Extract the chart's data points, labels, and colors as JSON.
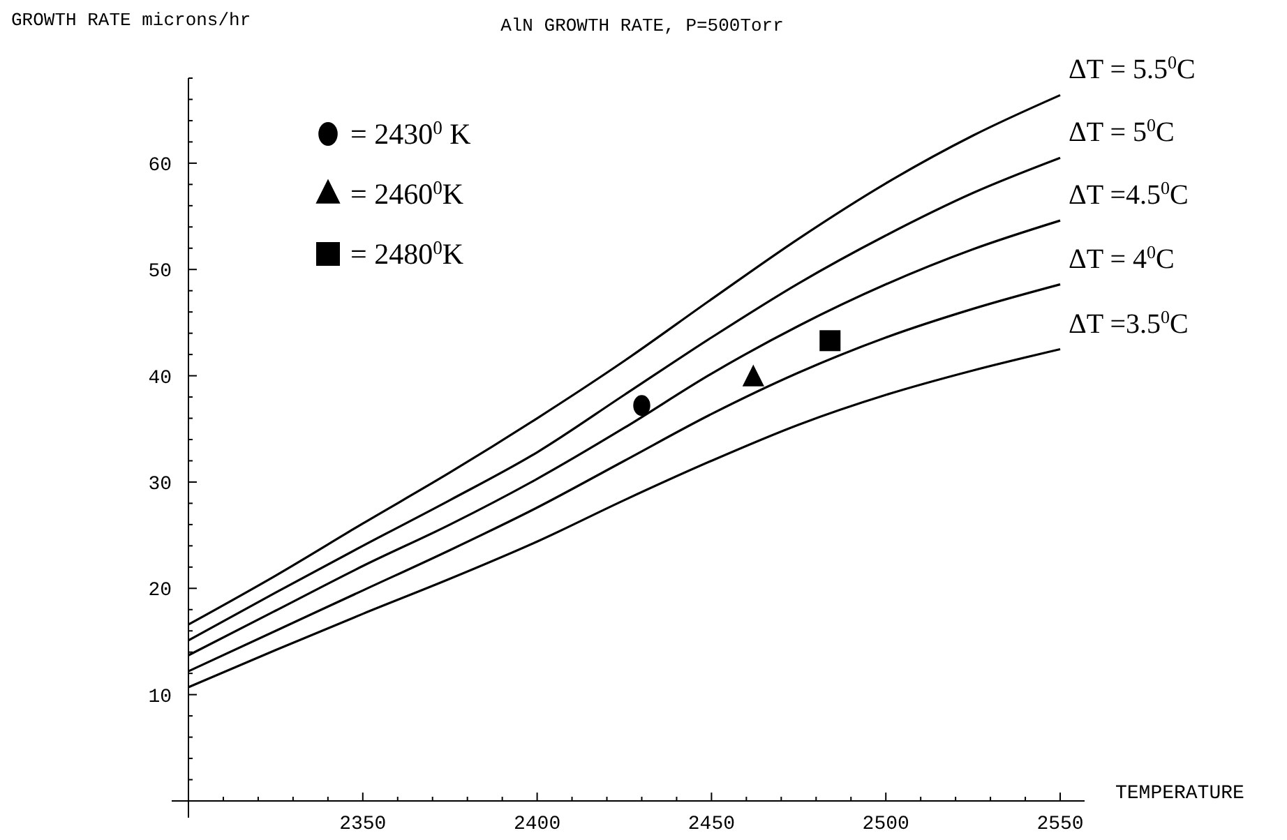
{
  "chart_data": {
    "type": "line",
    "title": "AlN GROWTH RATE, P=500Torr",
    "xlabel": "TEMPERATURE",
    "ylabel": "GROWTH RATE microns/hr",
    "xlim": [
      2300,
      2557
    ],
    "ylim": [
      0,
      68
    ],
    "xticks": [
      {
        "value": 2310,
        "label": null
      },
      {
        "value": 2320,
        "label": null
      },
      {
        "value": 2330,
        "label": null
      },
      {
        "value": 2340,
        "label": null
      },
      2350,
      {
        "value": 2360,
        "label": null
      },
      {
        "value": 2370,
        "label": null
      },
      {
        "value": 2380,
        "label": null
      },
      {
        "value": 2390,
        "label": null
      },
      2400,
      {
        "value": 2410,
        "label": null
      },
      {
        "value": 2420,
        "label": null
      },
      {
        "value": 2430,
        "label": null
      },
      {
        "value": 2440,
        "label": null
      },
      2450,
      {
        "value": 2460,
        "label": null
      },
      {
        "value": 2470,
        "label": null
      },
      {
        "value": 2480,
        "label": null
      },
      {
        "value": 2490,
        "label": null
      },
      2500,
      {
        "value": 2510,
        "label": null
      },
      {
        "value": 2520,
        "label": null
      },
      {
        "value": 2530,
        "label": null
      },
      {
        "value": 2540,
        "label": null
      },
      2550
    ],
    "yticks": [
      {
        "value": 2,
        "label": null
      },
      {
        "value": 4,
        "label": null
      },
      {
        "value": 6,
        "label": null
      },
      {
        "value": 8,
        "label": null
      },
      10,
      {
        "value": 12,
        "label": null
      },
      {
        "value": 14,
        "label": null
      },
      {
        "value": 16,
        "label": null
      },
      {
        "value": 18,
        "label": null
      },
      20,
      {
        "value": 22,
        "label": null
      },
      {
        "value": 24,
        "label": null
      },
      {
        "value": 26,
        "label": null
      },
      {
        "value": 28,
        "label": null
      },
      30,
      {
        "value": 32,
        "label": null
      },
      {
        "value": 34,
        "label": null
      },
      {
        "value": 36,
        "label": null
      },
      {
        "value": 38,
        "label": null
      },
      40,
      {
        "value": 42,
        "label": null
      },
      {
        "value": 44,
        "label": null
      },
      {
        "value": 46,
        "label": null
      },
      {
        "value": 48,
        "label": null
      },
      50,
      {
        "value": 52,
        "label": null
      },
      {
        "value": 54,
        "label": null
      },
      {
        "value": 56,
        "label": null
      },
      {
        "value": 58,
        "label": null
      },
      60,
      {
        "value": 62,
        "label": null
      },
      {
        "value": 64,
        "label": null
      },
      {
        "value": 66,
        "label": null
      },
      {
        "value": 68,
        "label": null
      }
    ],
    "x": [
      2300,
      2325,
      2350,
      2375,
      2400,
      2425,
      2450,
      2475,
      2500,
      2525,
      2550
    ],
    "legend": "top left",
    "grid": false,
    "series": [
      {
        "name": "ΔT = 5.5$^{0}$C",
        "color": "#000000",
        "marker": "none",
        "values": [
          16.6,
          21.2,
          26.1,
          30.9,
          36.0,
          41.4,
          47.2,
          52.9,
          58.1,
          62.6,
          66.4
        ]
      },
      {
        "name": "ΔT = 5$^{0}$C",
        "color": "#000000",
        "marker": "none",
        "values": [
          15.1,
          19.6,
          24.0,
          28.3,
          32.8,
          38.2,
          43.6,
          48.7,
          53.2,
          57.2,
          60.5
        ]
      },
      {
        "name": "ΔT =4.5$^{0}$C",
        "color": "#000000",
        "marker": "none",
        "values": [
          13.7,
          17.9,
          22.1,
          26.0,
          30.3,
          35.1,
          40.2,
          44.7,
          48.6,
          51.9,
          54.6
        ]
      },
      {
        "name": "ΔT = 4$^{0}$C",
        "color": "#000000",
        "marker": "none",
        "values": [
          12.2,
          16.0,
          19.8,
          23.6,
          27.6,
          32.0,
          36.4,
          40.3,
          43.6,
          46.3,
          48.6
        ]
      },
      {
        "name": "ΔT =3.5$^{0}$C",
        "color": "#000000",
        "marker": "none",
        "values": [
          10.7,
          14.2,
          17.6,
          20.9,
          24.4,
          28.3,
          32.0,
          35.4,
          38.2,
          40.5,
          42.5
        ]
      },
      {
        "name": "= 2430$^{0}$ K",
        "type": "scatter",
        "color": "#000000",
        "marker": "circle",
        "x": [
          2430
        ],
        "values": [
          37.2
        ]
      },
      {
        "name": "= 2460$^{0}$K",
        "type": "scatter",
        "color": "#000000",
        "marker": "triangle",
        "x": [
          2462
        ],
        "values": [
          39.8
        ]
      },
      {
        "name": "= 2480$^{0}$K",
        "type": "scatter",
        "color": "#000000",
        "marker": "square",
        "x": [
          2484
        ],
        "values": [
          43.3
        ]
      }
    ]
  }
}
